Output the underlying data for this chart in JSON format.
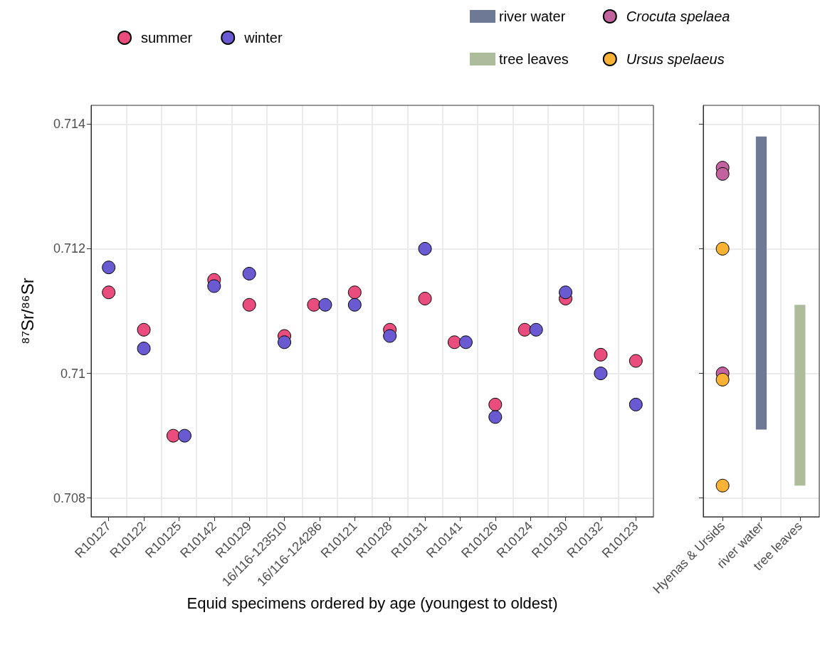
{
  "chart_data": [
    {
      "type": "scatter",
      "xlabel": "Equid specimens ordered by age (youngest to oldest)",
      "ylabel": "⁸⁷Sr/⁸⁶Sr",
      "categories": [
        "R10127",
        "R10122",
        "R10125",
        "R10142",
        "R10129",
        "16/116-123510",
        "16/116-124286",
        "R10121",
        "R10128",
        "R10131",
        "R10141",
        "R10126",
        "R10124",
        "R10130",
        "R10132",
        "R10123"
      ],
      "series": [
        {
          "name": "summer",
          "color": "#e84d7d",
          "values": [
            0.7113,
            0.7107,
            0.709,
            0.7115,
            0.7111,
            0.7106,
            0.7111,
            0.7113,
            0.7107,
            0.7112,
            0.7105,
            0.7095,
            0.7107,
            0.7112,
            0.7103,
            0.7102
          ]
        },
        {
          "name": "winter",
          "color": "#6a5ad2",
          "values": [
            0.7117,
            0.7104,
            0.709,
            0.7114,
            0.7116,
            0.7105,
            0.7111,
            0.7111,
            0.7106,
            0.712,
            0.7105,
            0.7093,
            0.7107,
            0.7113,
            0.71,
            0.7095
          ]
        }
      ],
      "ylim": [
        0.7077,
        0.7143
      ],
      "yticks": [
        0.708,
        0.71,
        0.712,
        0.714
      ],
      "grid": true,
      "legend": "top left",
      "marker": "circle"
    },
    {
      "type": "scatter",
      "categories": [
        "Hyenas & Ursids",
        "river water",
        "tree leaves"
      ],
      "series": [
        {
          "name": "river water",
          "type": "bar",
          "color": "#6e7996",
          "values": [
            null,
            0.0047,
            null
          ],
          "base": [
            null,
            0.7091,
            null
          ]
        },
        {
          "name": "tree leaves",
          "type": "bar",
          "color": "#adbd9b",
          "values": [
            null,
            null,
            0.0029
          ],
          "base": [
            null,
            null,
            0.7082
          ]
        },
        {
          "name": "Crocuta spelaea",
          "color": "#c2629f",
          "x": [
            "Hyenas & Ursids",
            "Hyenas & Ursids",
            "Hyenas & Ursids"
          ],
          "values": [
            0.7133,
            0.7132,
            0.71
          ]
        },
        {
          "name": "Ursus spelaeus",
          "color": "#f9b233",
          "x": [
            "Hyenas & Ursids",
            "Hyenas & Ursids",
            "Hyenas & Ursids"
          ],
          "values": [
            0.712,
            0.7099,
            0.7082
          ]
        }
      ],
      "ylim": [
        0.7077,
        0.7143
      ],
      "yticks": [
        0.708,
        0.71,
        0.712,
        0.714
      ],
      "grid": true,
      "legend": "top left",
      "marker": "circle",
      "tick_labels": "x"
    }
  ]
}
